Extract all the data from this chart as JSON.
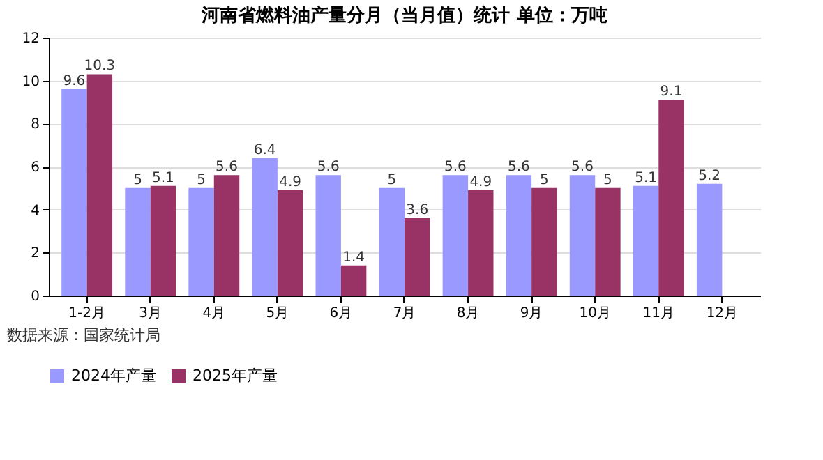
{
  "chart_data": {
    "type": "bar",
    "title": "河南省燃料油产量分月（当月值）统计 单位：万吨",
    "categories": [
      "1-2月",
      "3月",
      "4月",
      "5月",
      "6月",
      "7月",
      "8月",
      "9月",
      "10月",
      "11月",
      "12月"
    ],
    "series": [
      {
        "name": "2024年产量",
        "color": "#9999ff",
        "values": [
          9.6,
          5,
          5,
          6.4,
          5.6,
          5,
          5.6,
          5.6,
          5.6,
          5.1,
          5.2
        ]
      },
      {
        "name": "2025年产量",
        "color": "#993366",
        "values": [
          10.3,
          5.1,
          5.6,
          4.9,
          1.4,
          3.6,
          4.9,
          5,
          5,
          9.1,
          null
        ]
      }
    ],
    "ylim": [
      0,
      12
    ],
    "yticks": [
      0,
      2,
      4,
      6,
      8,
      10,
      12
    ],
    "grid": "y",
    "legend": "bottom",
    "data_labels": true,
    "annotations": [
      "数据来源：国家统计局"
    ]
  }
}
